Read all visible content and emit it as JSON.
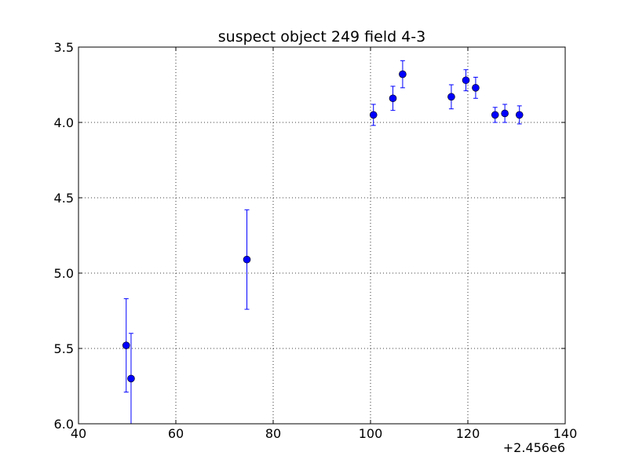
{
  "chart_data": {
    "type": "scatter",
    "title": "suspect object 249 field 4-3",
    "xlabel": "",
    "ylabel": "",
    "x_offset_label": "+2.456e6",
    "xlim": [
      40,
      140
    ],
    "ylim": [
      6.0,
      3.5
    ],
    "y_inverted": true,
    "grid": true,
    "x_ticks": [
      40,
      60,
      80,
      100,
      120,
      140
    ],
    "x_tick_labels": [
      "40",
      "60",
      "80",
      "100",
      "120",
      "140"
    ],
    "y_ticks": [
      3.5,
      4.0,
      4.5,
      5.0,
      5.5,
      6.0
    ],
    "y_tick_labels": [
      "3.5",
      "4.0",
      "4.5",
      "5.0",
      "5.5",
      "6.0"
    ],
    "marker_color": "#0000ff",
    "series": [
      {
        "x": [
          49.8,
          50.8,
          74.6,
          100.6,
          104.6,
          106.6,
          116.6,
          119.6,
          121.6,
          125.6,
          127.6,
          130.6
        ],
        "y": [
          5.48,
          5.7,
          4.91,
          3.95,
          3.84,
          3.68,
          3.83,
          3.72,
          3.77,
          3.95,
          3.94,
          3.95
        ],
        "yerr": [
          0.31,
          0.3,
          0.33,
          0.07,
          0.08,
          0.09,
          0.08,
          0.07,
          0.07,
          0.05,
          0.06,
          0.06
        ]
      }
    ]
  }
}
